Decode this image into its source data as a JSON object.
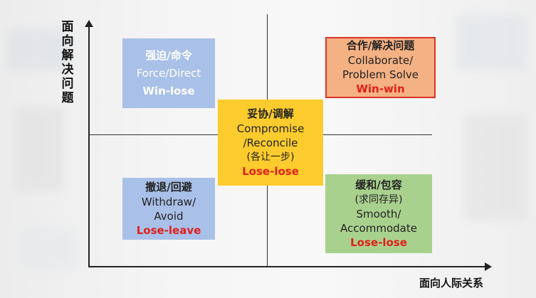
{
  "axes": {
    "y_label": "面向解决问题",
    "x_label": "面向人际关系"
  },
  "quadrants": {
    "force": {
      "cn": "强迫/命令",
      "en": "Force/Direct",
      "result": "Win-lose",
      "color": "#a9c0e8"
    },
    "collaborate": {
      "cn": "合作/解决问题",
      "en1": "Collaborate/",
      "en2": "Problem Solve",
      "result": "Win-win",
      "color": "#f4b183"
    },
    "compromise": {
      "cn": "妥协/调解",
      "en1": "Compromise",
      "en2": "/Reconcile",
      "note": "(各让一步)",
      "result": "Lose-lose",
      "color": "#fccb2d"
    },
    "withdraw": {
      "cn": "撤退/回避",
      "en1": "Withdraw/",
      "en2": "Avoid",
      "result": "Lose-leave",
      "color": "#a9c0e8"
    },
    "smooth": {
      "cn": "缓和/包容",
      "note": "(求同存异)",
      "en1": "Smooth/",
      "en2": "Accommodate",
      "result": "Lose-lose",
      "color": "#a9d18e"
    }
  },
  "colors": {
    "result_red": "#e0201b",
    "axis": "#222222"
  }
}
